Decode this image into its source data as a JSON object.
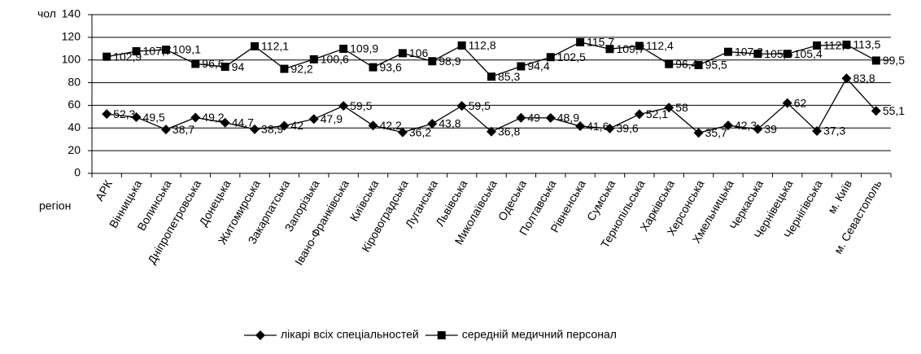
{
  "chart_data": {
    "type": "line",
    "y_label": "чол",
    "x_label": "регіон",
    "categories": [
      "АРК",
      "Вінницька",
      "Волинська",
      "Дніпропетровська",
      "Донецька",
      "Житомирська",
      "Закарпатська",
      "Запорізька",
      "Івано-Франківська",
      "Київська",
      "Кіровоградська",
      "Луганська",
      "Львівська",
      "Миколаївська",
      "Одеська",
      "Полтавська",
      "Рівненська",
      "Сумська",
      "Тернопільська",
      "Харківська",
      "Херсонська",
      "Хмельницька",
      "Черкаська",
      "Чернівецька",
      "Чернігівська",
      "м. Київ",
      "м. Севастополь"
    ],
    "series": [
      {
        "name": "лікарі всіх спеціальностей",
        "color": "#000000",
        "marker": "diamond",
        "values": [
          52.3,
          49.5,
          38.7,
          49.2,
          44.7,
          38.9,
          42,
          47.9,
          59.5,
          42.2,
          36.2,
          43.8,
          59.5,
          36.8,
          49,
          48.9,
          41.6,
          39.6,
          52.1,
          58,
          35.7,
          42.3,
          39,
          62,
          37.3,
          83.8,
          55.1
        ],
        "value_labels": [
          "52,3",
          "49,5",
          "38,7",
          "49,2",
          "44,7",
          "38,9",
          "42",
          "47,9",
          "59,5",
          "42,2",
          "36,2",
          "43,8",
          "59,5",
          "36,8",
          "49",
          "48,9",
          "41,6",
          "39,6",
          "52,1",
          "58",
          "35,7",
          "42,3",
          "39",
          "62",
          "37,3",
          "83,8",
          "55,1"
        ]
      },
      {
        "name": "середній медичний персонал",
        "color": "#000000",
        "marker": "square",
        "values": [
          102.9,
          107.7,
          109.1,
          96.6,
          94,
          112.1,
          92.2,
          100.6,
          109.9,
          93.6,
          106,
          98.9,
          112.8,
          85.3,
          94.4,
          102.5,
          115.7,
          109.7,
          112.4,
          96.4,
          95.5,
          107.2,
          105.5,
          105.4,
          112.8,
          113.5,
          99.5
        ],
        "value_labels": [
          "102,9",
          "107,7",
          "109,1",
          "96,6",
          "94",
          "112,1",
          "92,2",
          "100,6",
          "109,9",
          "93,6",
          "106",
          "98,9",
          "112,8",
          "85,3",
          "94,4",
          "102,5",
          "115,7",
          "109,7",
          "112,4",
          "96,4",
          "95,5",
          "107,2",
          "105,5",
          "105,4",
          "112,8",
          "113,5",
          "99,5"
        ]
      }
    ],
    "ylim": [
      0,
      140
    ],
    "yticks": [
      0,
      20,
      40,
      60,
      80,
      100,
      120,
      140
    ],
    "grid": true,
    "legend": "bottom"
  }
}
